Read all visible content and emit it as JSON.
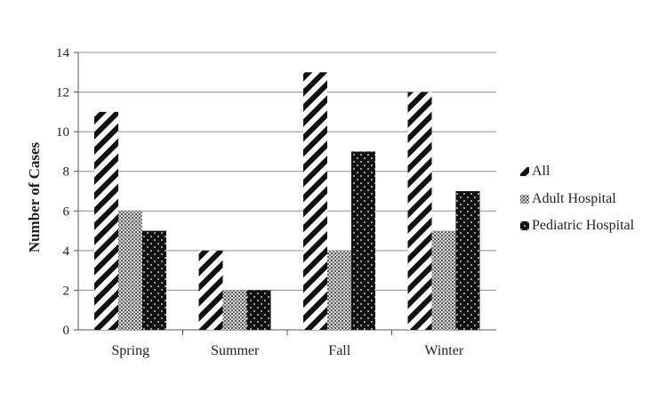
{
  "chart_data": {
    "type": "bar",
    "title": "",
    "xlabel": "",
    "ylabel": "Number of Cases",
    "ylim": [
      0,
      14
    ],
    "yticks": [
      0,
      2,
      4,
      6,
      8,
      10,
      12,
      14
    ],
    "grid": true,
    "legend_position": "right",
    "categories": [
      "Spring",
      "Summer",
      "Fall",
      "Winter"
    ],
    "series": [
      {
        "name": "All",
        "pattern": "diagonal-stripes",
        "values": [
          11,
          4,
          13,
          12
        ]
      },
      {
        "name": "Adult Hospital",
        "pattern": "crosshatch",
        "values": [
          6,
          2,
          4,
          5
        ]
      },
      {
        "name": "Pediatric Hospital",
        "pattern": "dotted-black",
        "values": [
          5,
          2,
          9,
          7
        ]
      }
    ]
  }
}
